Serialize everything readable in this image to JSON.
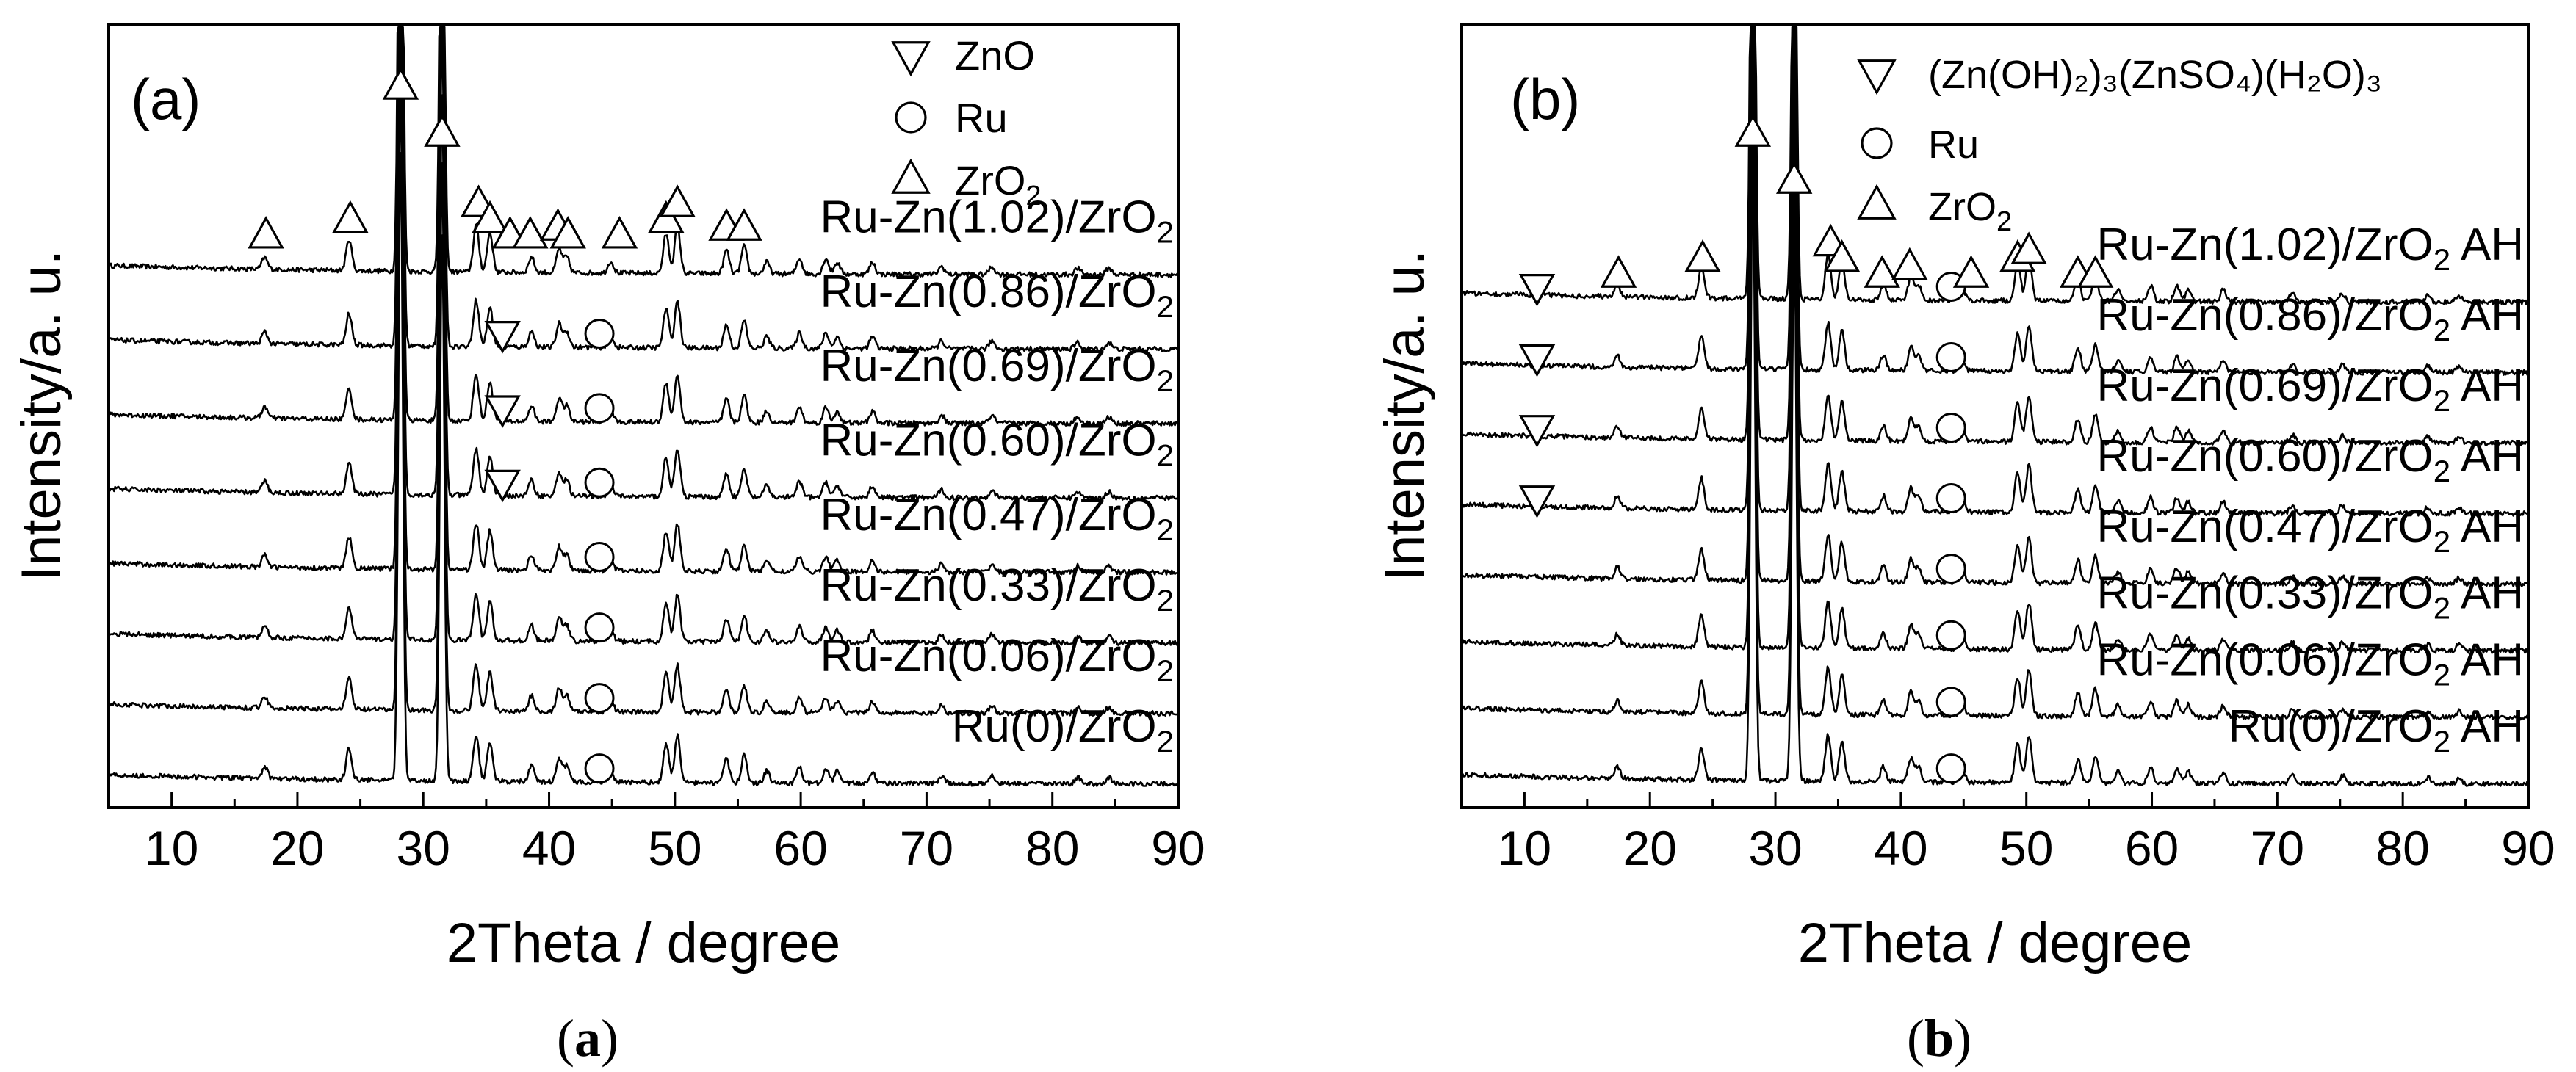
{
  "chart_data": [
    {
      "type": "line",
      "chart_kind": "stacked XRD patterns",
      "panel_label": "(a)",
      "caption_letter": "a",
      "xlabel": "2Theta / degree",
      "ylabel": "Intensity/a. u.",
      "xlim": [
        5,
        90
      ],
      "xticks": [
        "10",
        "20",
        "30",
        "40",
        "50",
        "60",
        "70",
        "80",
        "90"
      ],
      "legend_position": "top-right",
      "legend": [
        {
          "symbol": "down-triangle",
          "name": "ZnO"
        },
        {
          "symbol": "circle",
          "name": "Ru"
        },
        {
          "symbol": "up-triangle",
          "name": "ZrO",
          "sub": "2"
        }
      ],
      "series": [
        {
          "label": "Ru-Zn(1.02)/ZrO",
          "label_sub": "2",
          "baseline": 0.68,
          "markers": [
            {
              "symbol": "up",
              "x": 17.5,
              "y": 0.73
            },
            {
              "symbol": "up",
              "x": 24.2,
              "y": 0.75
            },
            {
              "symbol": "up",
              "x": 28.2,
              "y": 0.92
            },
            {
              "symbol": "up",
              "x": 31.5,
              "y": 0.86
            },
            {
              "symbol": "up",
              "x": 34.4,
              "y": 0.77
            },
            {
              "symbol": "up",
              "x": 35.3,
              "y": 0.75
            },
            {
              "symbol": "up",
              "x": 36.9,
              "y": 0.73
            },
            {
              "symbol": "up",
              "x": 38.5,
              "y": 0.73
            },
            {
              "symbol": "up",
              "x": 40.7,
              "y": 0.74
            },
            {
              "symbol": "up",
              "x": 41.5,
              "y": 0.73
            },
            {
              "symbol": "up",
              "x": 45.6,
              "y": 0.73
            },
            {
              "symbol": "up",
              "x": 49.3,
              "y": 0.75
            },
            {
              "symbol": "up",
              "x": 50.2,
              "y": 0.77
            },
            {
              "symbol": "up",
              "x": 54.1,
              "y": 0.74
            },
            {
              "symbol": "up",
              "x": 55.5,
              "y": 0.74
            }
          ]
        },
        {
          "label": "Ru-Zn(0.86)/ZrO",
          "label_sub": "2",
          "baseline": 0.585,
          "markers": [
            {
              "symbol": "down",
              "x": 36.3,
              "y": 0.605
            },
            {
              "symbol": "circle",
              "x": 44.0,
              "y": 0.605
            }
          ]
        },
        {
          "label": "Ru-Zn(0.69)/ZrO",
          "label_sub": "2",
          "baseline": 0.49,
          "markers": [
            {
              "symbol": "down",
              "x": 36.3,
              "y": 0.51
            },
            {
              "symbol": "circle",
              "x": 44.0,
              "y": 0.51
            }
          ]
        },
        {
          "label": "Ru-Zn(0.60)/ZrO",
          "label_sub": "2",
          "baseline": 0.395,
          "markers": [
            {
              "symbol": "down",
              "x": 36.3,
              "y": 0.415
            },
            {
              "symbol": "circle",
              "x": 44.0,
              "y": 0.415
            }
          ]
        },
        {
          "label": "Ru-Zn(0.47)/ZrO",
          "label_sub": "2",
          "baseline": 0.3,
          "markers": [
            {
              "symbol": "circle",
              "x": 44.0,
              "y": 0.32
            }
          ]
        },
        {
          "label": "Ru-Zn(0.33)/ZrO",
          "label_sub": "2",
          "baseline": 0.21,
          "markers": [
            {
              "symbol": "circle",
              "x": 44.0,
              "y": 0.23
            }
          ]
        },
        {
          "label": "Ru-Zn(0.06)/ZrO",
          "label_sub": "2",
          "baseline": 0.12,
          "markers": [
            {
              "symbol": "circle",
              "x": 44.0,
              "y": 0.14
            }
          ]
        },
        {
          "label": "Ru(0)/ZrO",
          "label_sub": "2",
          "baseline": 0.03,
          "markers": [
            {
              "symbol": "circle",
              "x": 44.0,
              "y": 0.05
            }
          ]
        }
      ]
    },
    {
      "type": "line",
      "chart_kind": "stacked XRD patterns",
      "panel_label": "(b)",
      "caption_letter": "b",
      "xlabel": "2Theta / degree",
      "ylabel": "Intensity/a. u.",
      "xlim": [
        5,
        90
      ],
      "xticks": [
        "10",
        "20",
        "30",
        "40",
        "50",
        "60",
        "70",
        "80",
        "90"
      ],
      "legend_position": "top-right",
      "legend": [
        {
          "symbol": "down-triangle",
          "name": "(Zn(OH)₂)₃(ZnSO₄)(H₂O)₃"
        },
        {
          "symbol": "circle",
          "name": "Ru"
        },
        {
          "symbol": "up-triangle",
          "name": "ZrO",
          "sub": "2"
        }
      ],
      "series": [
        {
          "label": "Ru-Zn(1.02)/ZrO",
          "label_sub": "2",
          "suffix": " AH",
          "baseline": 0.645,
          "markers": [
            {
              "symbol": "down",
              "x": 11.0,
              "y": 0.665
            },
            {
              "symbol": "up",
              "x": 17.5,
              "y": 0.68
            },
            {
              "symbol": "up",
              "x": 24.2,
              "y": 0.7
            },
            {
              "symbol": "up",
              "x": 28.2,
              "y": 0.86
            },
            {
              "symbol": "up",
              "x": 31.5,
              "y": 0.8
            },
            {
              "symbol": "up",
              "x": 34.4,
              "y": 0.72
            },
            {
              "symbol": "up",
              "x": 35.3,
              "y": 0.7
            },
            {
              "symbol": "up",
              "x": 38.5,
              "y": 0.68
            },
            {
              "symbol": "up",
              "x": 40.7,
              "y": 0.69
            },
            {
              "symbol": "circle",
              "x": 44.0,
              "y": 0.665
            },
            {
              "symbol": "up",
              "x": 45.6,
              "y": 0.68
            },
            {
              "symbol": "up",
              "x": 49.3,
              "y": 0.7
            },
            {
              "symbol": "up",
              "x": 50.2,
              "y": 0.71
            },
            {
              "symbol": "up",
              "x": 54.1,
              "y": 0.68
            },
            {
              "symbol": "up",
              "x": 55.5,
              "y": 0.68
            }
          ]
        },
        {
          "label": "Ru-Zn(0.86)/ZrO",
          "label_sub": "2",
          "suffix": " AH",
          "baseline": 0.555,
          "markers": [
            {
              "symbol": "down",
              "x": 11.0,
              "y": 0.575
            },
            {
              "symbol": "circle",
              "x": 44.0,
              "y": 0.575
            }
          ]
        },
        {
          "label": "Ru-Zn(0.69)/ZrO",
          "label_sub": "2",
          "suffix": " AH",
          "baseline": 0.465,
          "markers": [
            {
              "symbol": "down",
              "x": 11.0,
              "y": 0.485
            },
            {
              "symbol": "circle",
              "x": 44.0,
              "y": 0.485
            }
          ]
        },
        {
          "label": "Ru-Zn(0.60)/ZrO",
          "label_sub": "2",
          "suffix": " AH",
          "baseline": 0.375,
          "markers": [
            {
              "symbol": "down",
              "x": 11.0,
              "y": 0.395
            },
            {
              "symbol": "circle",
              "x": 44.0,
              "y": 0.395
            }
          ]
        },
        {
          "label": "Ru-Zn(0.47)/ZrO",
          "label_sub": "2",
          "suffix": " AH",
          "baseline": 0.285,
          "markers": [
            {
              "symbol": "circle",
              "x": 44.0,
              "y": 0.305
            }
          ]
        },
        {
          "label": "Ru-Zn(0.33)/ZrO",
          "label_sub": "2",
          "suffix": " AH",
          "baseline": 0.2,
          "markers": [
            {
              "symbol": "circle",
              "x": 44.0,
              "y": 0.22
            }
          ]
        },
        {
          "label": "Ru-Zn(0.06)/ZrO",
          "label_sub": "2",
          "suffix": " AH",
          "baseline": 0.115,
          "markers": [
            {
              "symbol": "circle",
              "x": 44.0,
              "y": 0.135
            }
          ]
        },
        {
          "label": "Ru(0)/ZrO",
          "label_sub": "2",
          "suffix": " AH",
          "baseline": 0.03,
          "markers": [
            {
              "symbol": "circle",
              "x": 44.0,
              "y": 0.05
            }
          ]
        }
      ]
    }
  ],
  "zro2_reflections": [
    {
      "x": 17.4,
      "h": 0.015
    },
    {
      "x": 24.1,
      "h": 0.04
    },
    {
      "x": 28.2,
      "h": 0.8
    },
    {
      "x": 31.5,
      "h": 0.7
    },
    {
      "x": 34.2,
      "h": 0.06
    },
    {
      "x": 35.3,
      "h": 0.05
    },
    {
      "x": 38.6,
      "h": 0.02
    },
    {
      "x": 40.8,
      "h": 0.03
    },
    {
      "x": 41.4,
      "h": 0.02
    },
    {
      "x": 44.9,
      "h": 0.015
    },
    {
      "x": 49.3,
      "h": 0.05
    },
    {
      "x": 50.2,
      "h": 0.06
    },
    {
      "x": 54.1,
      "h": 0.03
    },
    {
      "x": 55.5,
      "h": 0.035
    },
    {
      "x": 57.3,
      "h": 0.015
    },
    {
      "x": 59.9,
      "h": 0.02
    },
    {
      "x": 62.0,
      "h": 0.02
    },
    {
      "x": 62.9,
      "h": 0.015
    },
    {
      "x": 65.7,
      "h": 0.015
    },
    {
      "x": 71.2,
      "h": 0.01
    },
    {
      "x": 75.2,
      "h": 0.01
    },
    {
      "x": 82.0,
      "h": 0.008
    },
    {
      "x": 84.5,
      "h": 0.008
    }
  ]
}
